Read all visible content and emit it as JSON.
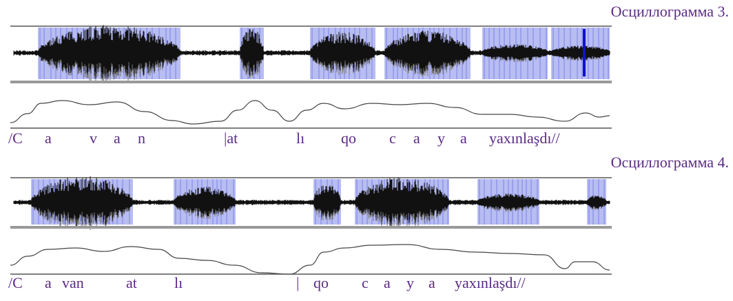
{
  "figures": [
    {
      "title": "Осциллограмма 3.",
      "transcription": [
        "/C",
        "a",
        "v",
        "a",
        "n",
        "|at",
        "lı",
        "qo",
        "c",
        "a",
        "y",
        "a",
        "yaxınlaşdı//"
      ]
    },
    {
      "title": "Осциллограмма 4.",
      "transcription": [
        "/C",
        "a",
        "van",
        "at",
        "lı",
        "|",
        "qo",
        "c",
        "a",
        "y",
        "a",
        "yaxınlaşdı//"
      ]
    }
  ]
}
